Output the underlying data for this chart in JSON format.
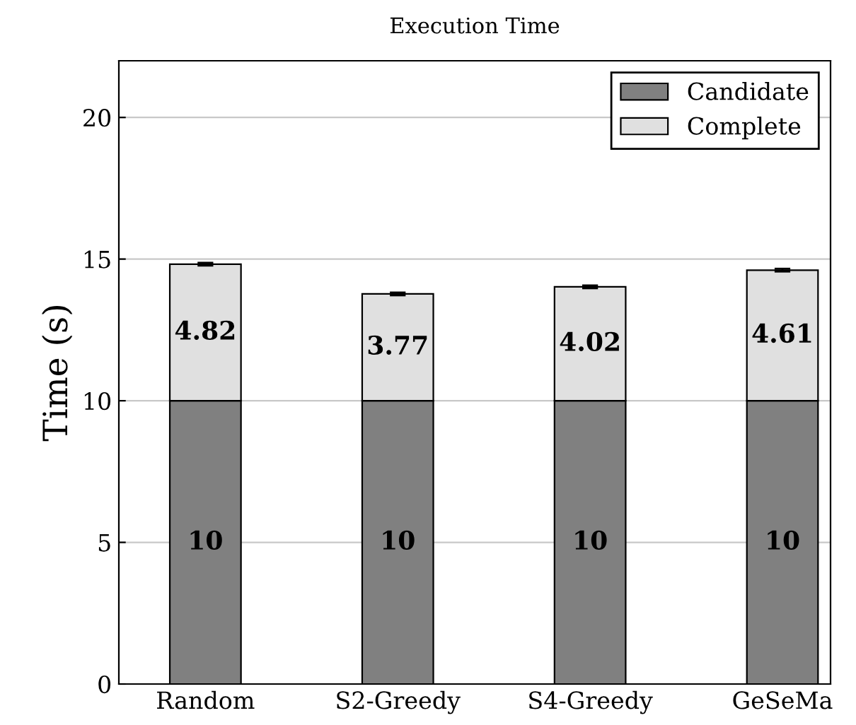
{
  "chart_data": {
    "type": "bar",
    "title": "Execution Time",
    "ylabel": "Time (s)",
    "categories": [
      "Random",
      "S2-Greedy",
      "S4-Greedy",
      "GeSeMa"
    ],
    "stacked": true,
    "series": [
      {
        "name": "Candidate",
        "color": "#808080",
        "values": [
          10,
          10,
          10,
          10
        ]
      },
      {
        "name": "Complete",
        "color": "#e0e0e0",
        "values": [
          4.82,
          3.77,
          4.02,
          4.61
        ],
        "errors": [
          0.05,
          0.05,
          0.05,
          0.05
        ]
      }
    ],
    "ylim": [
      0,
      22
    ],
    "yticks": [
      0,
      5,
      10,
      15,
      20
    ],
    "grid": "y",
    "legend": "top right",
    "data_labels": true
  }
}
